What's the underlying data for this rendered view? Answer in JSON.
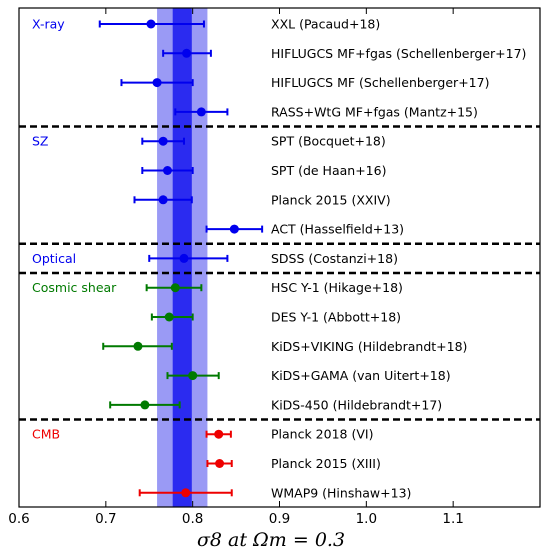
{
  "chart_data": {
    "type": "scatter",
    "title": "",
    "xlabel": "σ8 at Ωm = 0.3",
    "xlim": [
      0.6,
      1.2
    ],
    "xticks": [
      "0.6",
      "0.7",
      "0.8",
      "0.9",
      "1.0",
      "1.1"
    ],
    "grid": false,
    "bands": [
      {
        "lo": 0.759,
        "hi": 0.817,
        "color": "#9a9af5"
      },
      {
        "lo": 0.777,
        "hi": 0.799,
        "color": "#2b2bf0"
      }
    ],
    "sections": [
      {
        "name": "X-ray",
        "color": "#0000ee",
        "points": [
          {
            "label": "XXL (Pacaud+18)",
            "value": 0.752,
            "lo": 0.693,
            "hi": 0.813
          },
          {
            "label": "HIFLUGCS MF+fgas (Schellenberger+17)",
            "value": 0.793,
            "lo": 0.766,
            "hi": 0.821
          },
          {
            "label": "HIFLUGCS MF (Schellenberger+17)",
            "value": 0.759,
            "lo": 0.718,
            "hi": 0.8
          },
          {
            "label": "RASS+WtG MF+fgas (Mantz+15)",
            "value": 0.81,
            "lo": 0.78,
            "hi": 0.84
          }
        ]
      },
      {
        "name": "SZ",
        "color": "#0000ee",
        "points": [
          {
            "label": "SPT (Bocquet+18)",
            "value": 0.766,
            "lo": 0.742,
            "hi": 0.79
          },
          {
            "label": "SPT (de Haan+16)",
            "value": 0.771,
            "lo": 0.742,
            "hi": 0.8
          },
          {
            "label": "Planck 2015 (XXIV)",
            "value": 0.766,
            "lo": 0.733,
            "hi": 0.799
          },
          {
            "label": "ACT (Hasselfield+13)",
            "value": 0.848,
            "lo": 0.816,
            "hi": 0.88
          }
        ]
      },
      {
        "name": "Optical",
        "color": "#0000ee",
        "points": [
          {
            "label": "SDSS (Costanzi+18)",
            "value": 0.79,
            "lo": 0.75,
            "hi": 0.84
          }
        ]
      },
      {
        "name": "Cosmic shear",
        "color": "#007a00",
        "points": [
          {
            "label": "HSC Y-1 (Hikage+18)",
            "value": 0.78,
            "lo": 0.747,
            "hi": 0.81
          },
          {
            "label": "DES Y-1 (Abbott+18)",
            "value": 0.773,
            "lo": 0.753,
            "hi": 0.8
          },
          {
            "label": "KiDS+VIKING (Hildebrandt+18)",
            "value": 0.737,
            "lo": 0.697,
            "hi": 0.776
          },
          {
            "label": "KiDS+GAMA (van Uitert+18)",
            "value": 0.8,
            "lo": 0.771,
            "hi": 0.83
          },
          {
            "label": "KiDS-450 (Hildebrandt+17)",
            "value": 0.745,
            "lo": 0.705,
            "hi": 0.785
          }
        ]
      },
      {
        "name": "CMB",
        "color": "#ee0000",
        "points": [
          {
            "label": "Planck 2018 (VI)",
            "value": 0.83,
            "lo": 0.816,
            "hi": 0.844
          },
          {
            "label": "Planck 2015 (XIII)",
            "value": 0.831,
            "lo": 0.817,
            "hi": 0.845
          },
          {
            "label": "WMAP9 (Hinshaw+13)",
            "value": 0.792,
            "lo": 0.739,
            "hi": 0.845
          }
        ]
      }
    ]
  }
}
